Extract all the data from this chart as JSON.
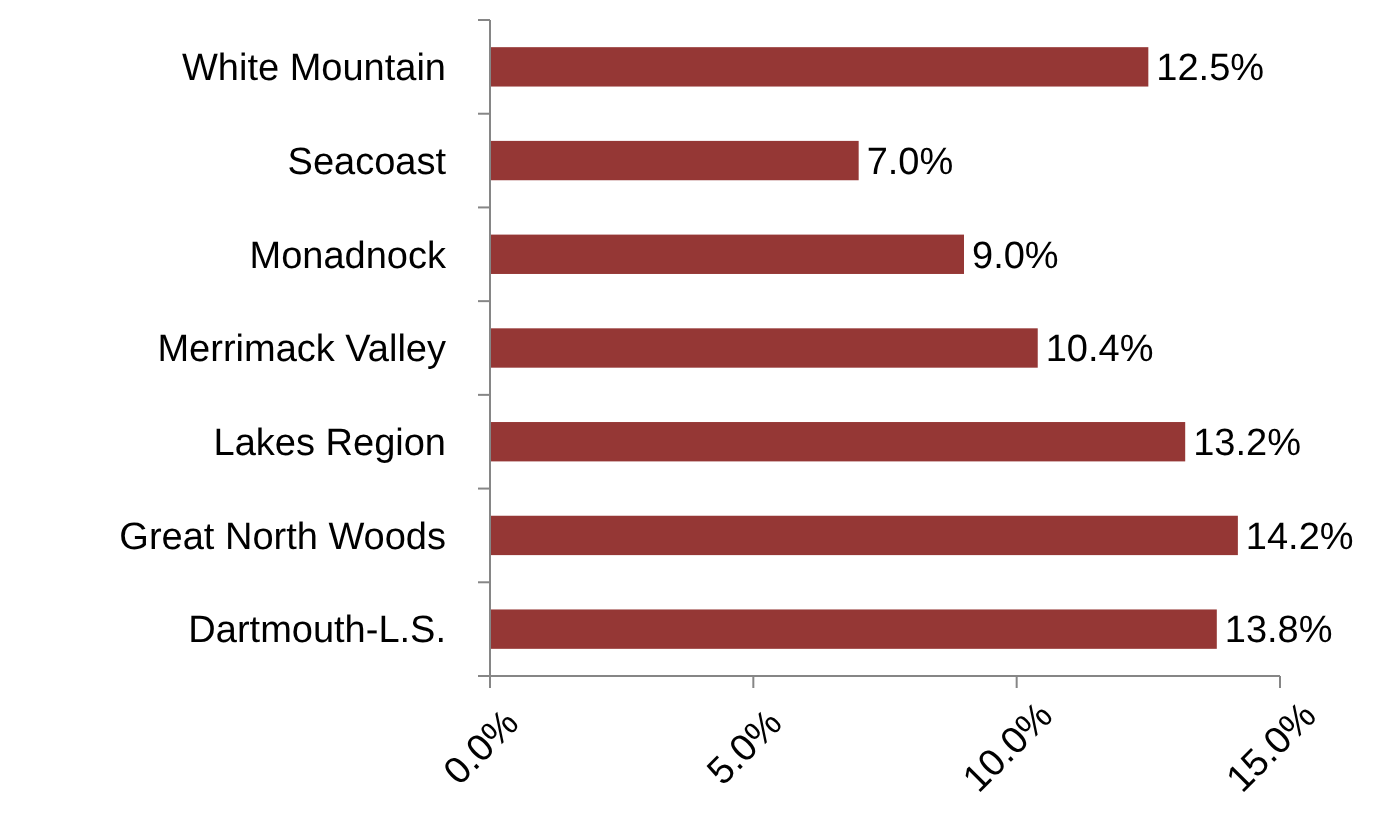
{
  "chart_data": {
    "type": "bar",
    "orientation": "horizontal",
    "categories": [
      "White Mountain",
      "Seacoast",
      "Monadnock",
      "Merrimack Valley",
      "Lakes Region",
      "Great North Woods",
      "Dartmouth-L.S."
    ],
    "values": [
      12.5,
      7.0,
      9.0,
      10.4,
      13.2,
      14.2,
      13.8
    ],
    "value_labels": [
      "12.5%",
      "7.0%",
      "9.0%",
      "10.4%",
      "13.2%",
      "14.2%",
      "13.8%"
    ],
    "color": "#953735",
    "xlim": [
      0,
      15
    ],
    "xticks": [
      {
        "value": 0,
        "label": "0.0%"
      },
      {
        "value": 5,
        "label": "5.0%"
      },
      {
        "value": 10,
        "label": "10.0%"
      },
      {
        "value": 15,
        "label": "15.0%"
      }
    ],
    "grid": false
  }
}
